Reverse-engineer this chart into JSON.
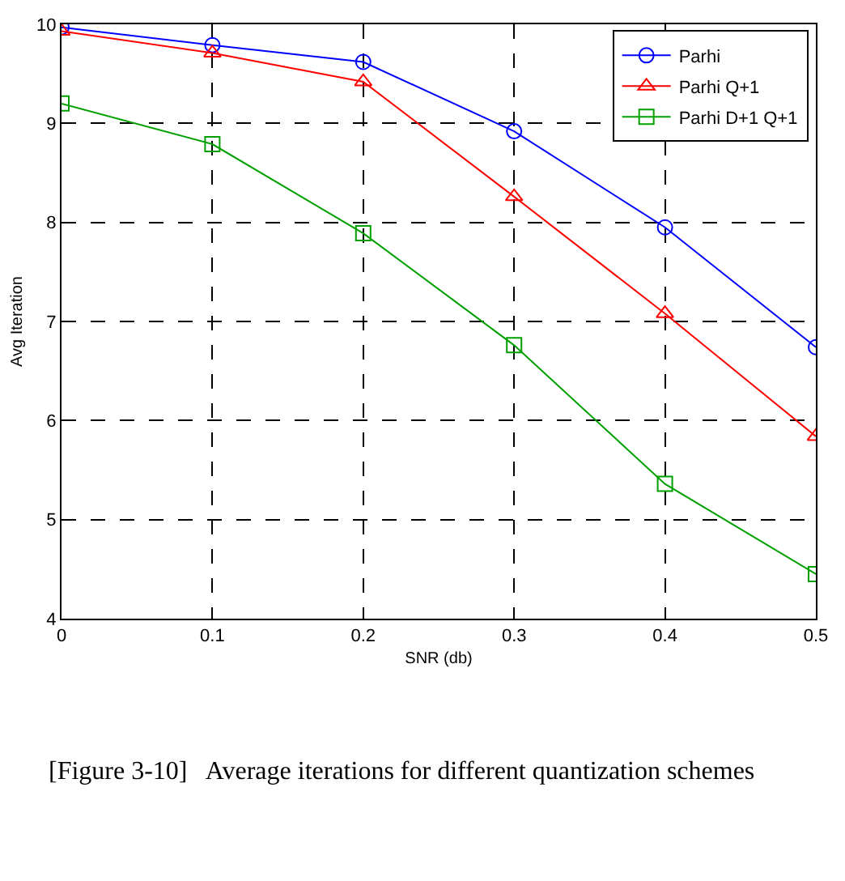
{
  "chart_data": {
    "type": "line",
    "xlabel": "SNR (db)",
    "ylabel": "Avg Iteration",
    "x": [
      0,
      0.1,
      0.2,
      0.3,
      0.4,
      0.5
    ],
    "series": [
      {
        "name": "Parhi",
        "color": "#0000ff",
        "marker": "circle",
        "values": [
          9.97,
          9.79,
          9.62,
          8.92,
          7.95,
          6.74
        ]
      },
      {
        "name": "Parhi Q+1",
        "color": "#ff0000",
        "marker": "triangle",
        "values": [
          9.93,
          9.71,
          9.42,
          8.26,
          7.08,
          5.84
        ]
      },
      {
        "name": "Parhi D+1 Q+1",
        "color": "#00a000",
        "marker": "square",
        "values": [
          9.2,
          8.79,
          7.89,
          6.76,
          5.36,
          4.45
        ]
      }
    ],
    "xlim": [
      0,
      0.5
    ],
    "xticks": [
      0,
      0.1,
      0.2,
      0.3,
      0.4,
      0.5
    ],
    "ylim": [
      4,
      10
    ],
    "yticks": [
      4,
      5,
      6,
      7,
      8,
      9,
      10
    ],
    "grid": true,
    "legend": "top right",
    "line_style": "solid",
    "annotations": [
      "[Figure 3-10]   Average iterations for different quantization schemes"
    ]
  }
}
